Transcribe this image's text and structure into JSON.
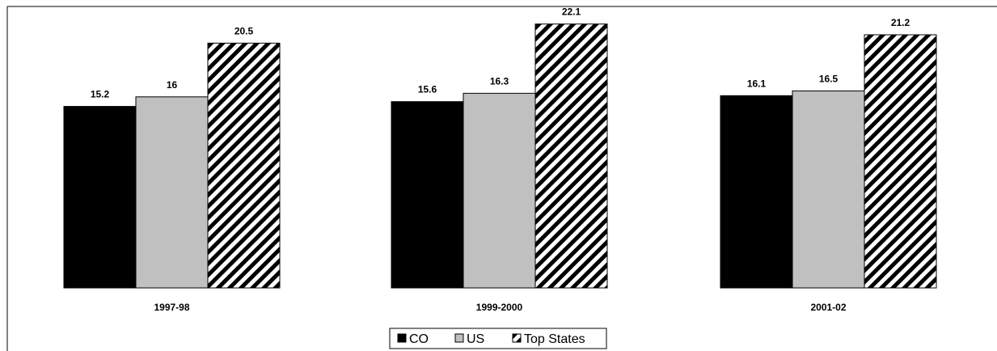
{
  "chart_data": {
    "type": "bar",
    "categories": [
      "1997-98",
      "1999-2000",
      "2001-02"
    ],
    "series": [
      {
        "name": "CO",
        "values": [
          15.2,
          15.6,
          16.1
        ],
        "fill": "solid-black",
        "color": "#000000"
      },
      {
        "name": "US",
        "values": [
          16,
          16.3,
          16.5
        ],
        "fill": "solid-gray",
        "color": "#c0c0c0"
      },
      {
        "name": "Top States",
        "values": [
          20.5,
          22.1,
          21.2
        ],
        "fill": "diagonal-stripes",
        "color": "#000000"
      }
    ],
    "ylim": [
      0,
      23.3
    ],
    "axes_visible": false,
    "grid": false,
    "legend": "bottom-center",
    "data_labels": true
  }
}
